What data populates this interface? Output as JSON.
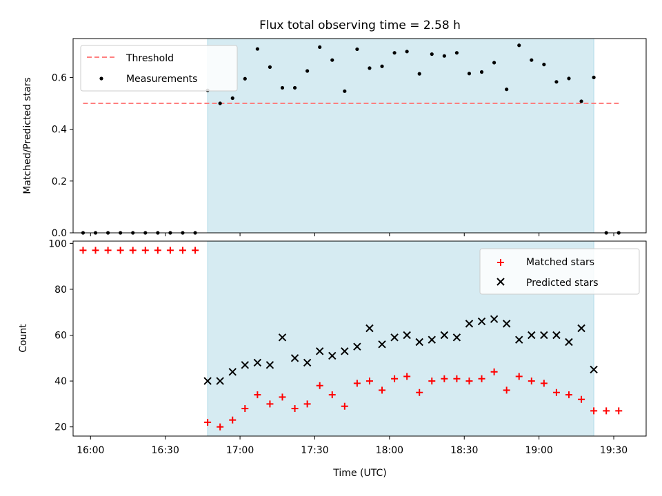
{
  "title": "Flux total observing time = 2.58 h",
  "xlabel": "Time (UTC)",
  "x_ticks": [
    "16:00",
    "16:30",
    "17:00",
    "17:30",
    "18:00",
    "18:30",
    "19:00",
    "19:30"
  ],
  "colors": {
    "shade": "#add8e6",
    "threshold": "#ff7f7f",
    "measurements": "#000000",
    "matched": "#ff0000",
    "predicted": "#000000"
  },
  "chart_data": [
    {
      "type": "scatter",
      "ylabel": "Matched/Predicted stars",
      "y_ticks": [
        "0.0",
        "0.2",
        "0.4",
        "0.6"
      ],
      "xlim": [
        "15:53",
        "19:43"
      ],
      "ylim": [
        0,
        0.75
      ],
      "shaded_interval": [
        "16:47",
        "19:22"
      ],
      "legend_position": "top-left",
      "legend": [
        "Threshold",
        "Measurements"
      ],
      "threshold": {
        "name": "Threshold",
        "y": 0.5,
        "x_range": [
          "15:57",
          "19:32"
        ]
      },
      "series": [
        {
          "name": "Measurements",
          "x": [
            "15:57",
            "16:02",
            "16:07",
            "16:12",
            "16:17",
            "16:22",
            "16:27",
            "16:32",
            "16:37",
            "16:42",
            "16:47",
            "16:52",
            "16:57",
            "17:02",
            "17:07",
            "17:12",
            "17:17",
            "17:22",
            "17:27",
            "17:32",
            "17:37",
            "17:42",
            "17:47",
            "17:52",
            "17:57",
            "18:02",
            "18:07",
            "18:12",
            "18:17",
            "18:22",
            "18:27",
            "18:32",
            "18:37",
            "18:42",
            "18:47",
            "18:52",
            "18:57",
            "19:02",
            "19:07",
            "19:12",
            "19:17",
            "19:22",
            "19:27",
            "19:32"
          ],
          "y": [
            0,
            0,
            0,
            0,
            0,
            0,
            0,
            0,
            0,
            0,
            0.55,
            0.5,
            0.52,
            0.595,
            0.71,
            0.64,
            0.56,
            0.56,
            0.625,
            0.717,
            0.667,
            0.547,
            0.709,
            0.636,
            0.643,
            0.695,
            0.7,
            0.614,
            0.69,
            0.683,
            0.695,
            0.615,
            0.621,
            0.657,
            0.554,
            0.724,
            0.667,
            0.65,
            0.583,
            0.596,
            0.508,
            0.6,
            0,
            0
          ]
        }
      ]
    },
    {
      "type": "scatter",
      "ylabel": "Count",
      "y_ticks": [
        "20",
        "40",
        "60",
        "80",
        "100"
      ],
      "xlim": [
        "15:53",
        "19:43"
      ],
      "ylim": [
        16,
        101
      ],
      "shaded_interval": [
        "16:47",
        "19:22"
      ],
      "legend_position": "top-right",
      "legend": [
        "Matched stars",
        "Predicted stars"
      ],
      "series": [
        {
          "name": "Matched stars",
          "marker": "+",
          "x": [
            "15:57",
            "16:02",
            "16:07",
            "16:12",
            "16:17",
            "16:22",
            "16:27",
            "16:32",
            "16:37",
            "16:42",
            "16:47",
            "16:52",
            "16:57",
            "17:02",
            "17:07",
            "17:12",
            "17:17",
            "17:22",
            "17:27",
            "17:32",
            "17:37",
            "17:42",
            "17:47",
            "17:52",
            "17:57",
            "18:02",
            "18:07",
            "18:12",
            "18:17",
            "18:22",
            "18:27",
            "18:32",
            "18:37",
            "18:42",
            "18:47",
            "18:52",
            "18:57",
            "19:02",
            "19:07",
            "19:12",
            "19:17",
            "19:22",
            "19:27",
            "19:32"
          ],
          "y": [
            97,
            97,
            97,
            97,
            97,
            97,
            97,
            97,
            97,
            97,
            22,
            20,
            23,
            28,
            34,
            30,
            33,
            28,
            30,
            38,
            34,
            29,
            39,
            40,
            36,
            41,
            42,
            35,
            40,
            41,
            41,
            40,
            41,
            44,
            36,
            42,
            40,
            39,
            35,
            34,
            32,
            27,
            27,
            27
          ]
        },
        {
          "name": "Predicted stars",
          "marker": "x",
          "x": [
            "16:47",
            "16:52",
            "16:57",
            "17:02",
            "17:07",
            "17:12",
            "17:17",
            "17:22",
            "17:27",
            "17:32",
            "17:37",
            "17:42",
            "17:47",
            "17:52",
            "17:57",
            "18:02",
            "18:07",
            "18:12",
            "18:17",
            "18:22",
            "18:27",
            "18:32",
            "18:37",
            "18:42",
            "18:47",
            "18:52",
            "18:57",
            "19:02",
            "19:07",
            "19:12",
            "19:17",
            "19:22"
          ],
          "y": [
            40,
            40,
            44,
            47,
            48,
            47,
            59,
            50,
            48,
            53,
            51,
            53,
            55,
            63,
            56,
            59,
            60,
            57,
            58,
            60,
            59,
            65,
            66,
            67,
            65,
            58,
            60,
            60,
            60,
            57,
            63,
            45
          ]
        }
      ]
    }
  ]
}
